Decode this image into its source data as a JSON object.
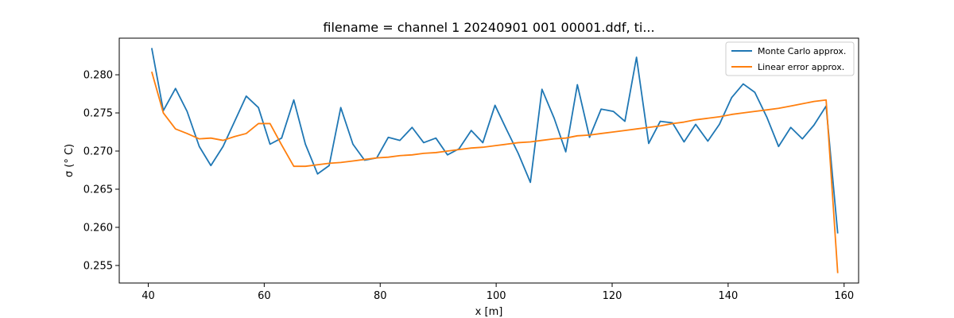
{
  "chart_data": {
    "type": "line",
    "title": "filename = channel 1 20240901 001 00001.ddf, ti...",
    "xlabel": "x [m]",
    "ylabel": "σ (° C)",
    "xlim": [
      35,
      162.5
    ],
    "ylim": [
      0.2527,
      0.2848
    ],
    "xticks": [
      40,
      60,
      80,
      100,
      120,
      140,
      160
    ],
    "yticks": [
      0.255,
      0.26,
      0.265,
      0.27,
      0.275,
      0.28
    ],
    "ytick_labels": [
      "0.255",
      "0.260",
      "0.265",
      "0.270",
      "0.275",
      "0.280"
    ],
    "legend_position": "top-right",
    "x": [
      40.6,
      42.6,
      44.7,
      46.7,
      48.8,
      50.8,
      52.9,
      54.9,
      56.9,
      59.0,
      61.0,
      63.0,
      65.1,
      67.1,
      69.2,
      71.2,
      73.2,
      75.3,
      77.3,
      79.4,
      81.4,
      83.4,
      85.5,
      87.5,
      89.6,
      91.6,
      93.6,
      95.7,
      97.7,
      99.8,
      101.8,
      103.8,
      105.9,
      107.9,
      110.0,
      112.0,
      114.0,
      116.1,
      118.1,
      120.2,
      122.2,
      124.2,
      126.3,
      128.3,
      130.4,
      132.4,
      134.4,
      136.5,
      138.5,
      140.6,
      142.6,
      144.6,
      146.7,
      148.7,
      150.8,
      152.8,
      154.8,
      156.9,
      158.9
    ],
    "series": [
      {
        "name": "Monte Carlo approx.",
        "color": "#1f77b4",
        "values": [
          0.2835,
          0.2753,
          0.2782,
          0.2752,
          0.2706,
          0.2681,
          0.2706,
          0.2739,
          0.2772,
          0.2757,
          0.2709,
          0.2717,
          0.2767,
          0.2709,
          0.267,
          0.2681,
          0.2757,
          0.2709,
          0.2688,
          0.2691,
          0.2718,
          0.2714,
          0.2731,
          0.2711,
          0.2717,
          0.2695,
          0.2703,
          0.2727,
          0.2711,
          0.276,
          0.2728,
          0.2697,
          0.2659,
          0.2781,
          0.2743,
          0.2699,
          0.2787,
          0.2718,
          0.2755,
          0.2752,
          0.2739,
          0.2823,
          0.271,
          0.2739,
          0.2737,
          0.2712,
          0.2735,
          0.2713,
          0.2735,
          0.277,
          0.2788,
          0.2777,
          0.2744,
          0.2706,
          0.2731,
          0.2716,
          0.2734,
          0.2759,
          0.2592
        ]
      },
      {
        "name": "Linear error approx.",
        "color": "#ff7f0e",
        "values": [
          0.2804,
          0.275,
          0.2729,
          0.2723,
          0.2716,
          0.2717,
          0.2714,
          0.2719,
          0.2723,
          0.2736,
          0.2736,
          0.2708,
          0.268,
          0.268,
          0.2682,
          0.2684,
          0.2685,
          0.2687,
          0.2689,
          0.2691,
          0.2692,
          0.2694,
          0.2695,
          0.2697,
          0.2698,
          0.27,
          0.2702,
          0.2704,
          0.2705,
          0.2707,
          0.2709,
          0.2711,
          0.2712,
          0.2714,
          0.2716,
          0.2717,
          0.272,
          0.2721,
          0.2723,
          0.2725,
          0.2727,
          0.2729,
          0.2731,
          0.2733,
          0.2736,
          0.2738,
          0.2741,
          0.2743,
          0.2745,
          0.2748,
          0.275,
          0.2752,
          0.2754,
          0.2756,
          0.2759,
          0.2762,
          0.2765,
          0.2767,
          0.254
        ]
      }
    ]
  }
}
